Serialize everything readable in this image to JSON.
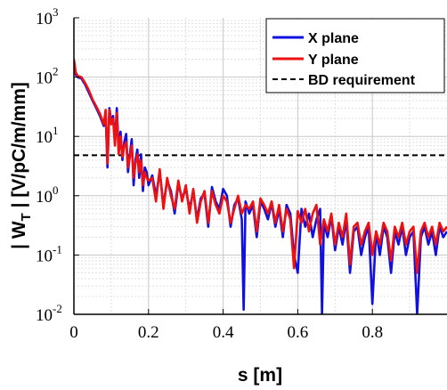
{
  "chart_data": {
    "type": "line",
    "title": "",
    "xlabel": "s [m]",
    "ylabel_main": "| W",
    "ylabel_sub": "T",
    "ylabel_rest": " | [V/pC/m/mm]",
    "xlim": [
      0,
      1.0
    ],
    "ylim": [
      0.01,
      1000
    ],
    "yscale": "log",
    "grid": true,
    "legend_position": "top-right",
    "x_ticks": [
      {
        "value": 0,
        "label": "0"
      },
      {
        "value": 0.2,
        "label": "0.2"
      },
      {
        "value": 0.4,
        "label": "0.4"
      },
      {
        "value": 0.6,
        "label": "0.6"
      },
      {
        "value": 0.8,
        "label": "0.8"
      }
    ],
    "y_ticks": [
      {
        "value": 0.01,
        "base": "10",
        "exp": "-2"
      },
      {
        "value": 0.1,
        "base": "10",
        "exp": "-1"
      },
      {
        "value": 1,
        "base": "10",
        "exp": "0"
      },
      {
        "value": 10,
        "base": "10",
        "exp": "1"
      },
      {
        "value": 100,
        "base": "10",
        "exp": "2"
      },
      {
        "value": 1000,
        "base": "10",
        "exp": "3"
      }
    ],
    "bd_requirement": 4.8,
    "series": [
      {
        "name": "X plane",
        "color": "#1010e0",
        "x": [
          0.0,
          0.005,
          0.01,
          0.02,
          0.03,
          0.04,
          0.05,
          0.06,
          0.07,
          0.08,
          0.085,
          0.09,
          0.095,
          0.1,
          0.105,
          0.11,
          0.115,
          0.12,
          0.125,
          0.13,
          0.135,
          0.14,
          0.145,
          0.15,
          0.155,
          0.16,
          0.165,
          0.17,
          0.175,
          0.18,
          0.185,
          0.19,
          0.195,
          0.2,
          0.21,
          0.22,
          0.23,
          0.24,
          0.25,
          0.26,
          0.27,
          0.28,
          0.29,
          0.3,
          0.31,
          0.32,
          0.33,
          0.34,
          0.35,
          0.36,
          0.37,
          0.38,
          0.39,
          0.4,
          0.41,
          0.42,
          0.43,
          0.44,
          0.45,
          0.455,
          0.46,
          0.47,
          0.48,
          0.49,
          0.5,
          0.51,
          0.52,
          0.53,
          0.54,
          0.55,
          0.56,
          0.57,
          0.58,
          0.59,
          0.6,
          0.61,
          0.62,
          0.63,
          0.64,
          0.65,
          0.66,
          0.665,
          0.67,
          0.68,
          0.69,
          0.7,
          0.71,
          0.72,
          0.73,
          0.74,
          0.75,
          0.76,
          0.77,
          0.78,
          0.79,
          0.8,
          0.81,
          0.82,
          0.83,
          0.84,
          0.85,
          0.86,
          0.87,
          0.88,
          0.89,
          0.9,
          0.91,
          0.92,
          0.93,
          0.94,
          0.95,
          0.96,
          0.97,
          0.98,
          0.99,
          1.0
        ],
        "y": [
          180,
          110,
          100,
          95,
          75,
          55,
          40,
          30,
          22,
          15,
          25,
          3.0,
          30,
          18,
          22,
          8,
          30,
          6,
          12,
          4,
          8,
          11,
          2.5,
          5,
          9,
          1.5,
          4,
          6,
          2,
          5,
          1.2,
          3,
          2.5,
          1.5,
          2.2,
          1.0,
          2.5,
          0.7,
          1.8,
          1.2,
          0.5,
          1.6,
          0.9,
          1.3,
          0.6,
          1.2,
          0.4,
          0.9,
          1.1,
          0.3,
          1.4,
          0.8,
          0.6,
          1.3,
          1.0,
          0.3,
          0.7,
          0.9,
          0.4,
          0.012,
          0.8,
          0.5,
          0.7,
          0.2,
          0.8,
          0.6,
          0.4,
          0.75,
          0.3,
          0.6,
          0.2,
          0.7,
          0.5,
          0.1,
          0.05,
          0.6,
          0.3,
          0.5,
          0.2,
          0.4,
          0.6,
          0.01,
          0.35,
          0.2,
          0.45,
          0.12,
          0.3,
          0.15,
          0.4,
          0.05,
          0.25,
          0.3,
          0.1,
          0.2,
          0.3,
          0.015,
          0.25,
          0.1,
          0.3,
          0.2,
          0.05,
          0.25,
          0.15,
          0.3,
          0.1,
          0.2,
          0.25,
          0.01,
          0.2,
          0.3,
          0.15,
          0.25,
          0.1,
          0.3,
          0.2,
          0.25
        ]
      },
      {
        "name": "Y plane",
        "color": "#ee1111",
        "x": [
          0.0,
          0.005,
          0.01,
          0.02,
          0.03,
          0.04,
          0.05,
          0.06,
          0.07,
          0.08,
          0.085,
          0.09,
          0.095,
          0.1,
          0.105,
          0.11,
          0.115,
          0.12,
          0.125,
          0.13,
          0.135,
          0.14,
          0.145,
          0.15,
          0.155,
          0.16,
          0.165,
          0.17,
          0.175,
          0.18,
          0.185,
          0.19,
          0.195,
          0.2,
          0.21,
          0.22,
          0.23,
          0.24,
          0.25,
          0.26,
          0.27,
          0.28,
          0.29,
          0.3,
          0.31,
          0.32,
          0.33,
          0.34,
          0.35,
          0.36,
          0.37,
          0.38,
          0.39,
          0.4,
          0.41,
          0.42,
          0.43,
          0.44,
          0.45,
          0.46,
          0.47,
          0.48,
          0.49,
          0.5,
          0.51,
          0.52,
          0.53,
          0.54,
          0.55,
          0.56,
          0.57,
          0.58,
          0.59,
          0.6,
          0.61,
          0.62,
          0.63,
          0.64,
          0.65,
          0.66,
          0.67,
          0.68,
          0.69,
          0.7,
          0.71,
          0.72,
          0.73,
          0.74,
          0.75,
          0.76,
          0.77,
          0.78,
          0.79,
          0.8,
          0.81,
          0.82,
          0.83,
          0.84,
          0.85,
          0.86,
          0.87,
          0.88,
          0.89,
          0.9,
          0.91,
          0.92,
          0.93,
          0.94,
          0.95,
          0.96,
          0.97,
          0.98,
          0.99,
          1.0
        ],
        "y": [
          200,
          120,
          105,
          100,
          80,
          60,
          42,
          32,
          24,
          16,
          28,
          3.5,
          28,
          16,
          20,
          7,
          25,
          5,
          10,
          4.5,
          7,
          8,
          3,
          4.5,
          7,
          2,
          3.5,
          5,
          2.5,
          4,
          1.5,
          2.5,
          2,
          1.8,
          2.0,
          0.8,
          2.8,
          0.6,
          2.0,
          1.0,
          0.6,
          1.8,
          0.8,
          1.5,
          0.5,
          1.3,
          0.35,
          0.8,
          1.2,
          0.35,
          1.2,
          0.7,
          0.5,
          1.0,
          0.8,
          0.35,
          0.6,
          1.0,
          0.5,
          0.7,
          0.6,
          0.8,
          0.25,
          0.9,
          0.7,
          0.5,
          0.8,
          0.35,
          0.7,
          0.25,
          0.6,
          0.4,
          0.06,
          0.55,
          0.35,
          0.6,
          0.25,
          0.5,
          0.7,
          0.15,
          0.4,
          0.25,
          0.5,
          0.15,
          0.35,
          0.2,
          0.5,
          0.07,
          0.3,
          0.35,
          0.15,
          0.25,
          0.35,
          0.1,
          0.25,
          0.15,
          0.35,
          0.25,
          0.08,
          0.3,
          0.2,
          0.35,
          0.15,
          0.25,
          0.3,
          0.05,
          0.25,
          0.35,
          0.2,
          0.3,
          0.15,
          0.35,
          0.25,
          0.3
        ]
      }
    ],
    "legend": {
      "x_plane": "X plane",
      "y_plane": "Y plane",
      "bd": "BD requirement"
    }
  }
}
